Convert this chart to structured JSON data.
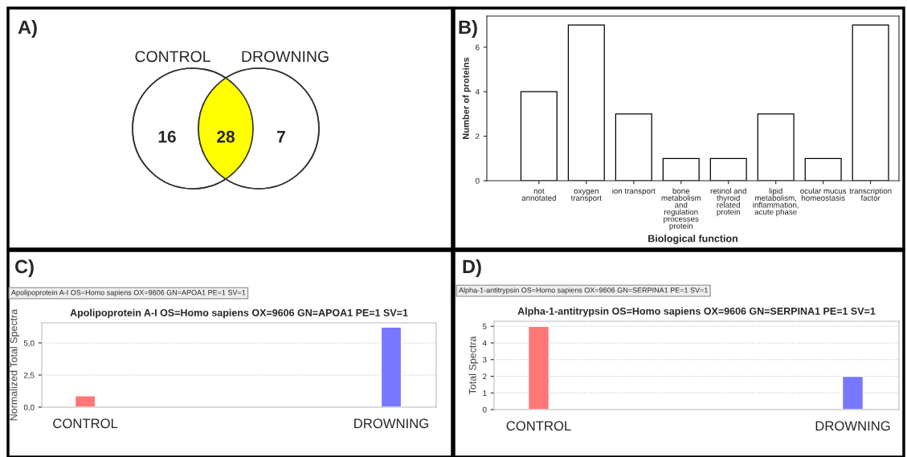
{
  "chart_data": [
    {
      "type": "other",
      "categories": [
        null,
        null,
        null
      ],
      "values": [
        16,
        28,
        7
      ],
      "data_labels": true,
      "colors": [
        "#ffffff",
        "#ffff00",
        "#ffffff"
      ],
      "annotations": [
        "A)",
        "CONTROL",
        "DROWNING"
      ]
    },
    {
      "type": "bar",
      "xlabel": "Biological function",
      "ylabel": "Number of proteins",
      "categories": [
        "not\nannotated",
        "oxygen\ntransport",
        "ion transport",
        "bone\nmetabolism\nand\nregulation\nprocesses\nprotein",
        "retinol and\nthyroid\nrelated\nprotein",
        "lipid\nmetabolism,\ninflammation,\nacute phase",
        "ocular mucus\nhomeostasis",
        "transcription\nfactor"
      ],
      "values": [
        4,
        7,
        3,
        1,
        1,
        3,
        1,
        7
      ],
      "color": "#ffffff",
      "ylim": [
        0,
        7.4
      ],
      "yticks": [
        0,
        2,
        4,
        6
      ],
      "annotations": [
        "B)"
      ]
    },
    {
      "type": "bar",
      "title": "Apolipoprotein A-I OS=Homo sapiens OX=9606 GN=APOA1 PE=1 SV=1",
      "ylabel": "Normalized Total Spectra",
      "categories": [
        "CONTROL",
        "DROWNING"
      ],
      "values": [
        0.89,
        6.23
      ],
      "colors": [
        "#ff7777",
        "#7777ff"
      ],
      "ylim": [
        0,
        6.56
      ],
      "yticks": [
        {
          "value": 0,
          "label": "0,0"
        },
        {
          "value": 2.5,
          "label": "2,5"
        },
        {
          "value": 5,
          "label": "5,0"
        }
      ],
      "grid": "y",
      "annotations": [
        "C)",
        "Apolipoprotein A-I OS=Homo sapiens OX=9606 GN=APOA1 PE=1 SV=1"
      ]
    },
    {
      "type": "bar",
      "title": "Alpha-1-antitrypsin OS=Homo sapiens OX=9606 GN=SERPINA1 PE=1 SV=1",
      "ylabel": "Total Spectra",
      "categories": [
        "CONTROL",
        "DROWNING"
      ],
      "values": [
        5,
        2
      ],
      "colors": [
        "#ff7777",
        "#7777ff"
      ],
      "ylim": [
        0,
        5.3
      ],
      "yticks": [
        0,
        1,
        2,
        3,
        4,
        5
      ],
      "grid": "y",
      "annotations": [
        "D)",
        "Alpha-1-antitrypsin OS=Homo sapiens OX=9606 GN=SERPINA1 PE=1 SV=1"
      ]
    }
  ]
}
